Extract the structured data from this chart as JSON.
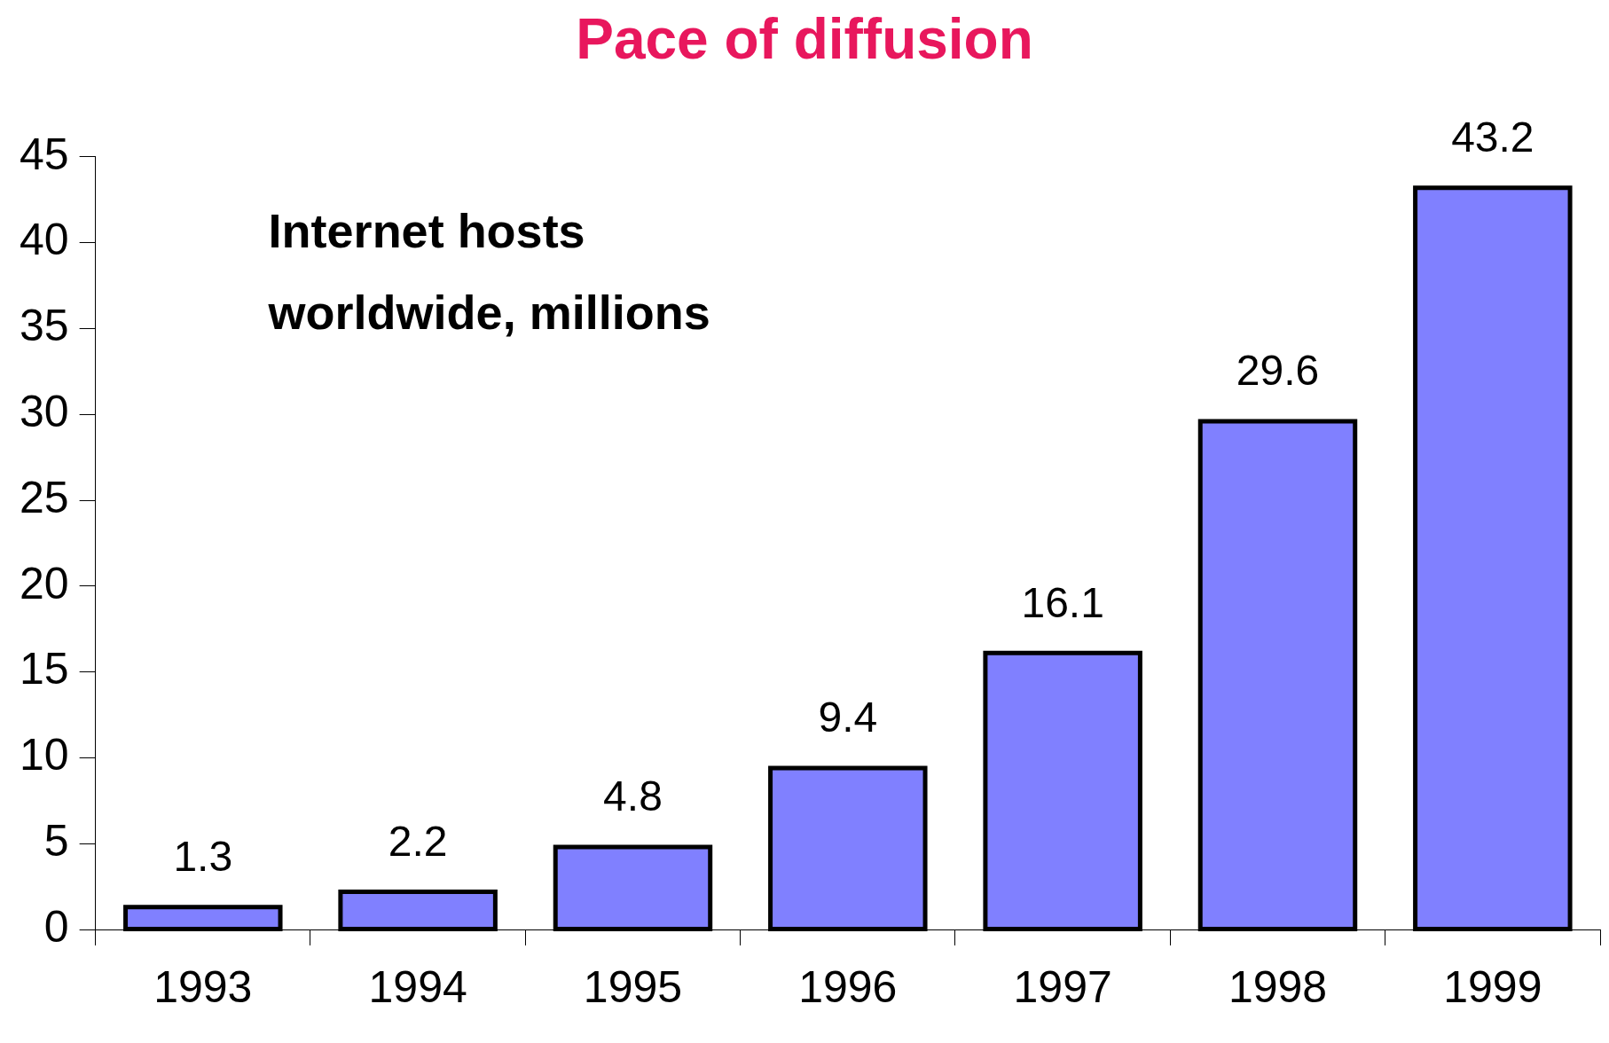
{
  "chart_data": {
    "type": "bar",
    "title": "Pace of diffusion",
    "annotations": [
      "Internet hosts worldwide, millions"
    ],
    "categories": [
      "1993",
      "1994",
      "1995",
      "1996",
      "1997",
      "1998",
      "1999"
    ],
    "values": [
      1.3,
      2.2,
      4.8,
      9.4,
      16.1,
      29.6,
      43.2
    ],
    "color": "#8080ff",
    "ylim": [
      0,
      45
    ],
    "yticks": [
      0,
      5,
      10,
      15,
      20,
      25,
      30,
      35,
      40,
      45
    ],
    "grid": false,
    "legend": false,
    "data_labels": true
  }
}
